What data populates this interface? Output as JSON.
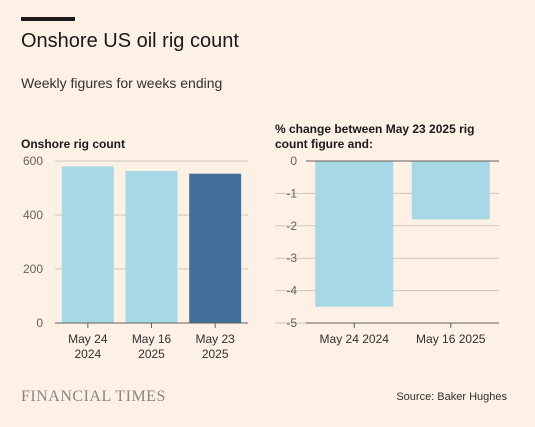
{
  "header": {
    "title": "Onshore US oil rig count",
    "subtitle": "Weekly figures for weeks ending"
  },
  "footer": {
    "brand": "FINANCIAL TIMES",
    "source": "Source: Baker Hughes"
  },
  "colors": {
    "background": "#fdf1e6",
    "bar_light": "#a6d8e6",
    "bar_dark": "#436f9b",
    "grid": "#cfc5bc",
    "axis": "#66605c"
  },
  "chart_data": [
    {
      "type": "bar",
      "title": "Onshore rig count",
      "categories": [
        [
          "May 24",
          "2024"
        ],
        [
          "May 16",
          "2025"
        ],
        [
          "May 23",
          "2025"
        ]
      ],
      "values": [
        580,
        563,
        553
      ],
      "highlight_index": 2,
      "ylim": [
        0,
        600
      ],
      "yticks": [
        0,
        200,
        400,
        600
      ],
      "grid": true
    },
    {
      "type": "bar",
      "title": [
        "% change between May 23 2025 rig",
        "count figure and:"
      ],
      "categories": [
        [
          "May 24 2024"
        ],
        [
          "May 16 2025"
        ]
      ],
      "values": [
        -4.5,
        -1.8
      ],
      "ylim": [
        -5,
        0
      ],
      "yticks": [
        0,
        -1,
        -2,
        -3,
        -4,
        -5
      ],
      "yaxis_side": "right",
      "grid": true
    }
  ]
}
